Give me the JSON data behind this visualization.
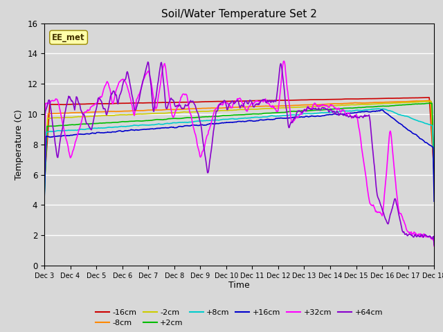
{
  "title": "Soil/Water Temperature Set 2",
  "xlabel": "Time",
  "ylabel": "Temperature (C)",
  "ylim": [
    0,
    16
  ],
  "yticks": [
    0,
    2,
    4,
    6,
    8,
    10,
    12,
    14,
    16
  ],
  "background_color": "#d8d8d8",
  "plot_bg_color": "#d8d8d8",
  "watermark_text": "EE_met",
  "series_order": [
    "-16cm",
    "-8cm",
    "-2cm",
    "+2cm",
    "+8cm",
    "+16cm",
    "+32cm",
    "+64cm"
  ],
  "series": {
    "-16cm": {
      "color": "#cc0000",
      "lw": 1.2
    },
    "-8cm": {
      "color": "#ff8800",
      "lw": 1.2
    },
    "-2cm": {
      "color": "#cccc00",
      "lw": 1.2
    },
    "+2cm": {
      "color": "#00bb00",
      "lw": 1.2
    },
    "+8cm": {
      "color": "#00cccc",
      "lw": 1.2
    },
    "+16cm": {
      "color": "#0000cc",
      "lw": 1.2
    },
    "+32cm": {
      "color": "#ff00ff",
      "lw": 1.2
    },
    "+64cm": {
      "color": "#8800cc",
      "lw": 1.2
    }
  },
  "n_points": 720,
  "x_start": 3,
  "x_end": 18,
  "xtick_positions": [
    3,
    4,
    5,
    6,
    7,
    8,
    9,
    10,
    11,
    12,
    13,
    14,
    15,
    16,
    17,
    18
  ],
  "xtick_labels": [
    "Dec 3",
    "Dec 4",
    "Dec 5",
    "Dec 6",
    "Dec 7",
    "Dec 8",
    "Dec 9",
    "Dec 10",
    "Dec 11",
    "Dec 12",
    "Dec 13",
    "Dec 14",
    "Dec 15",
    "Dec 16",
    "Dec 17",
    "Dec 18"
  ],
  "legend_row1": [
    "-16cm",
    "-8cm",
    "-2cm",
    "+2cm",
    "+8cm",
    "+16cm"
  ],
  "legend_row2": [
    "+32cm",
    "+64cm"
  ]
}
